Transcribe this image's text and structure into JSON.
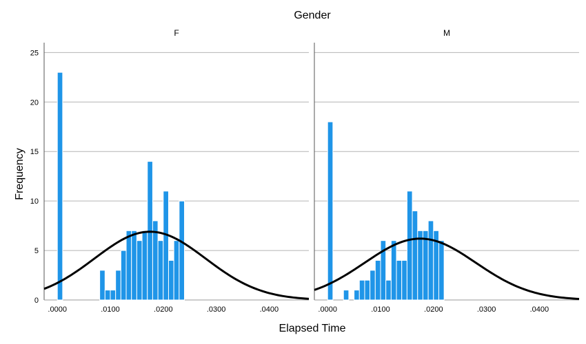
{
  "chart_data": {
    "type": "bar",
    "title": "Gender",
    "xlabel": "Elapsed Time",
    "ylabel": "Frequency",
    "ylim": [
      0,
      26
    ],
    "yticks": [
      "0",
      "5",
      "10",
      "15",
      "20",
      "25"
    ],
    "xlim": [
      -0.0025,
      0.0475
    ],
    "xticks": [
      ".0000",
      ".0100",
      ".0200",
      ".0300",
      ".0400"
    ],
    "bin_width": 0.001,
    "grid": true,
    "bar_color": "#1f95e8",
    "curve_color": "#000000",
    "panels": [
      {
        "name": "F",
        "bins": [
          {
            "x": 0.0,
            "y": 23
          },
          {
            "x": 0.008,
            "y": 3
          },
          {
            "x": 0.009,
            "y": 1
          },
          {
            "x": 0.01,
            "y": 1
          },
          {
            "x": 0.011,
            "y": 3
          },
          {
            "x": 0.012,
            "y": 5
          },
          {
            "x": 0.013,
            "y": 7
          },
          {
            "x": 0.014,
            "y": 7
          },
          {
            "x": 0.015,
            "y": 6
          },
          {
            "x": 0.016,
            "y": 7
          },
          {
            "x": 0.017,
            "y": 14
          },
          {
            "x": 0.018,
            "y": 8
          },
          {
            "x": 0.019,
            "y": 6
          },
          {
            "x": 0.02,
            "y": 11
          },
          {
            "x": 0.021,
            "y": 4
          },
          {
            "x": 0.022,
            "y": 6
          },
          {
            "x": 0.023,
            "y": 10
          }
        ],
        "normal_curve": {
          "mean": 0.0175,
          "sd": 0.0105,
          "peak": 6.9
        }
      },
      {
        "name": "M",
        "bins": [
          {
            "x": 0.0,
            "y": 18
          },
          {
            "x": 0.003,
            "y": 1
          },
          {
            "x": 0.005,
            "y": 1
          },
          {
            "x": 0.006,
            "y": 2
          },
          {
            "x": 0.007,
            "y": 2
          },
          {
            "x": 0.008,
            "y": 3
          },
          {
            "x": 0.009,
            "y": 4
          },
          {
            "x": 0.01,
            "y": 6
          },
          {
            "x": 0.011,
            "y": 2
          },
          {
            "x": 0.012,
            "y": 6
          },
          {
            "x": 0.013,
            "y": 4
          },
          {
            "x": 0.014,
            "y": 4
          },
          {
            "x": 0.015,
            "y": 11
          },
          {
            "x": 0.016,
            "y": 9
          },
          {
            "x": 0.017,
            "y": 7
          },
          {
            "x": 0.018,
            "y": 7
          },
          {
            "x": 0.019,
            "y": 8
          },
          {
            "x": 0.02,
            "y": 7
          },
          {
            "x": 0.021,
            "y": 6
          }
        ],
        "normal_curve": {
          "mean": 0.0175,
          "sd": 0.0105,
          "peak": 6.2
        }
      }
    ]
  }
}
